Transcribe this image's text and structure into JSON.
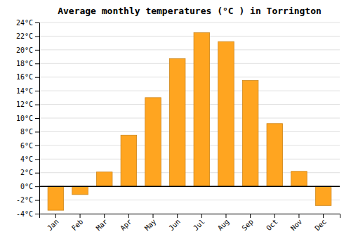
{
  "chart_data": {
    "type": "bar",
    "title": "Average monthly temperatures (°C ) in Torrington",
    "categories": [
      "Jan",
      "Feb",
      "Mar",
      "Apr",
      "May",
      "Jun",
      "Jul",
      "Aug",
      "Sep",
      "Oct",
      "Nov",
      "Dec"
    ],
    "values": [
      -3.5,
      -1.2,
      2.1,
      7.5,
      13.0,
      18.7,
      22.5,
      21.2,
      15.5,
      9.2,
      2.2,
      -2.8
    ],
    "color": "#FFA520",
    "ylim": [
      -4,
      24
    ],
    "yticks": [
      {
        "value": -4,
        "label": "-4°C"
      },
      {
        "value": -2,
        "label": "-2°C"
      },
      {
        "value": 0,
        "label": "0°C"
      },
      {
        "value": 2,
        "label": "2°C"
      },
      {
        "value": 4,
        "label": "4°C"
      },
      {
        "value": 6,
        "label": "6°C"
      },
      {
        "value": 8,
        "label": "8°C"
      },
      {
        "value": 10,
        "label": "10°C"
      },
      {
        "value": 12,
        "label": "12°C"
      },
      {
        "value": 14,
        "label": "14°C"
      },
      {
        "value": 16,
        "label": "16°C"
      },
      {
        "value": 18,
        "label": "18°C"
      },
      {
        "value": 20,
        "label": "20°C"
      },
      {
        "value": 22,
        "label": "22°C"
      },
      {
        "value": 24,
        "label": "24°C"
      }
    ],
    "grid": true
  }
}
